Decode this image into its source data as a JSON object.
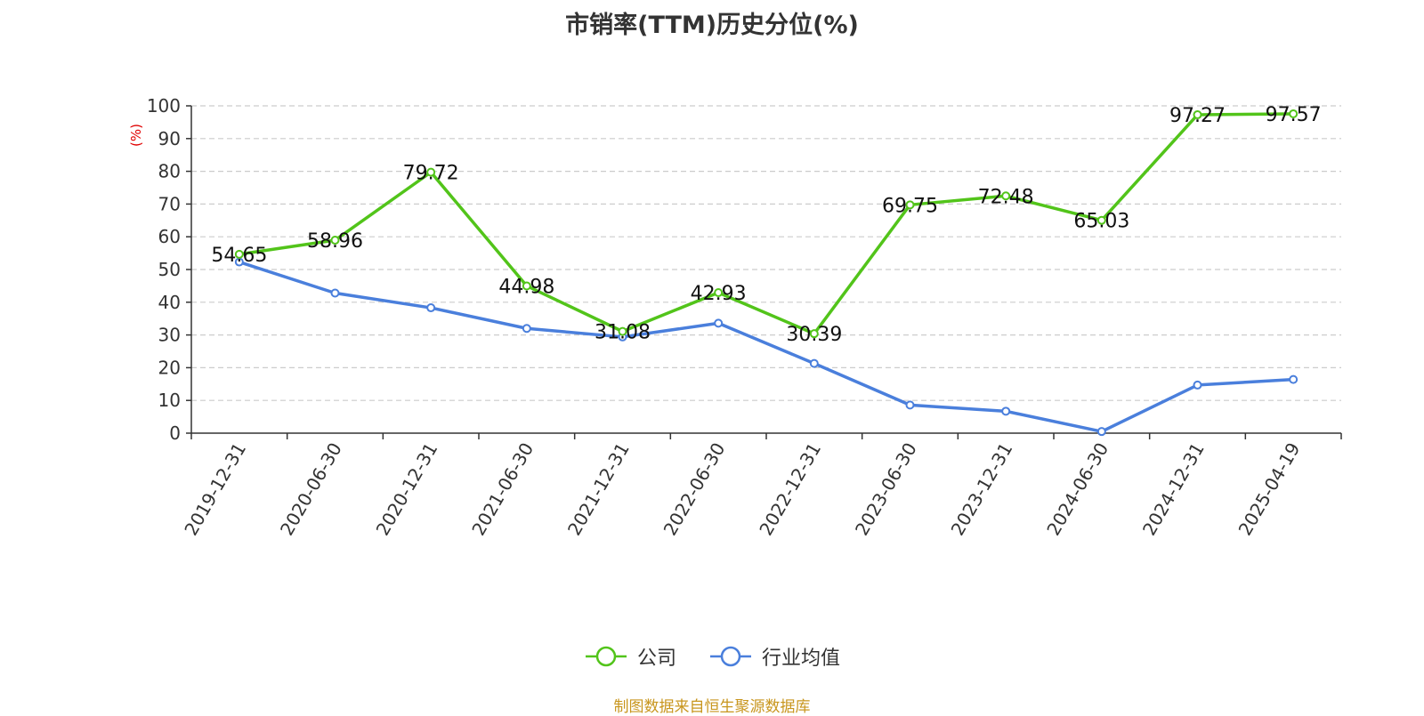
{
  "chart_data": {
    "type": "line",
    "title": "市销率(TTM)历史分位(%)",
    "ylabel": "(%)",
    "ylim": [
      0,
      100
    ],
    "yticks": [
      0,
      10,
      20,
      30,
      40,
      50,
      60,
      70,
      80,
      90,
      100
    ],
    "grid": "horizontal-dashed",
    "legend_position": "bottom-center",
    "categories": [
      "2019-12-31",
      "2020-06-30",
      "2020-12-31",
      "2021-06-30",
      "2021-12-31",
      "2022-06-30",
      "2022-12-31",
      "2023-06-30",
      "2023-12-31",
      "2024-06-30",
      "2024-12-31",
      "2025-04-19"
    ],
    "series": [
      {
        "name": "公司",
        "color": "#52c41a",
        "values": [
          54.65,
          58.96,
          79.72,
          44.98,
          31.08,
          42.93,
          30.39,
          69.75,
          72.48,
          65.03,
          97.27,
          97.57
        ],
        "data_labels": [
          "54.65",
          "58.96",
          "79.72",
          "44.98",
          "31.08",
          "42.93",
          "30.39",
          "69.75",
          "72.48",
          "65.03",
          "97.27",
          "97.57"
        ]
      },
      {
        "name": "行业均值",
        "color": "#4a7fdc",
        "values": [
          52.3,
          42.8,
          38.3,
          32.0,
          29.4,
          33.6,
          21.3,
          8.6,
          6.7,
          0.5,
          14.7,
          16.4
        ]
      }
    ]
  },
  "footer": {
    "source": "制图数据来自恒生聚源数据库"
  }
}
